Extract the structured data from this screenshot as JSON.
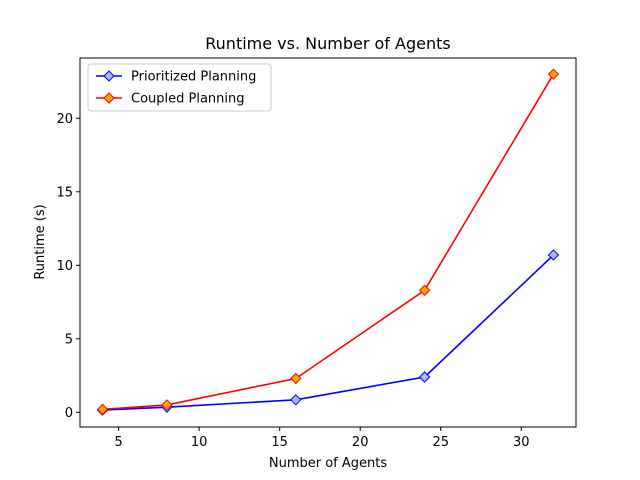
{
  "chart_data": {
    "type": "line",
    "title": "Runtime vs. Number of Agents",
    "xlabel": "Number of Agents",
    "ylabel": "Runtime (s)",
    "xlim": [
      2.6,
      33.4
    ],
    "ylim": [
      -1.0,
      24.1
    ],
    "xticks": [
      5,
      10,
      15,
      20,
      25,
      30
    ],
    "yticks": [
      0,
      5,
      10,
      15,
      20
    ],
    "grid": false,
    "legend_position": "upper-left",
    "x": [
      4,
      8,
      16,
      24,
      32
    ],
    "series": [
      {
        "name": "Prioritized Planning",
        "values": [
          0.15,
          0.35,
          0.85,
          2.4,
          10.7
        ],
        "line_color": "#0000ff",
        "marker": "diamond",
        "marker_fill": "#aabbee",
        "marker_edge": "#0000ff"
      },
      {
        "name": "Coupled Planning",
        "values": [
          0.2,
          0.5,
          2.3,
          8.3,
          23.0
        ],
        "line_color": "#ff0000",
        "marker": "diamond",
        "marker_fill": "#ffa500",
        "marker_edge": "#ff0000"
      }
    ]
  }
}
